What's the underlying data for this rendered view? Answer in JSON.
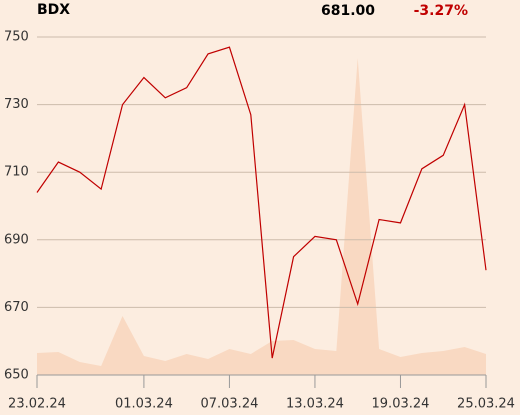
{
  "chart_data": {
    "type": "line",
    "title": "BDX",
    "price": "681.00",
    "change": "-3.27%",
    "change_color": "#c00000",
    "categories": [
      "23.02.24",
      null,
      null,
      null,
      null,
      "01.03.24",
      null,
      null,
      null,
      "07.03.24",
      null,
      null,
      null,
      "13.03.24",
      null,
      null,
      null,
      "19.03.24",
      null,
      null,
      null,
      "25.03.24"
    ],
    "values": [
      704,
      713,
      710,
      705,
      730,
      738,
      732,
      735,
      745,
      747,
      727,
      655,
      685,
      691,
      690,
      671,
      696,
      695,
      711,
      715,
      730,
      681
    ],
    "color": "#c00000",
    "volume": [
      22,
      23,
      13,
      9,
      59,
      19,
      14,
      21,
      16,
      26,
      21,
      34,
      35,
      26,
      24,
      317,
      26,
      18,
      22,
      24,
      28,
      21
    ],
    "volume_color": "#f9d9c2",
    "ylim": [
      650,
      750
    ],
    "yticks": [
      650,
      670,
      690,
      710,
      730,
      750
    ],
    "grid": true
  }
}
